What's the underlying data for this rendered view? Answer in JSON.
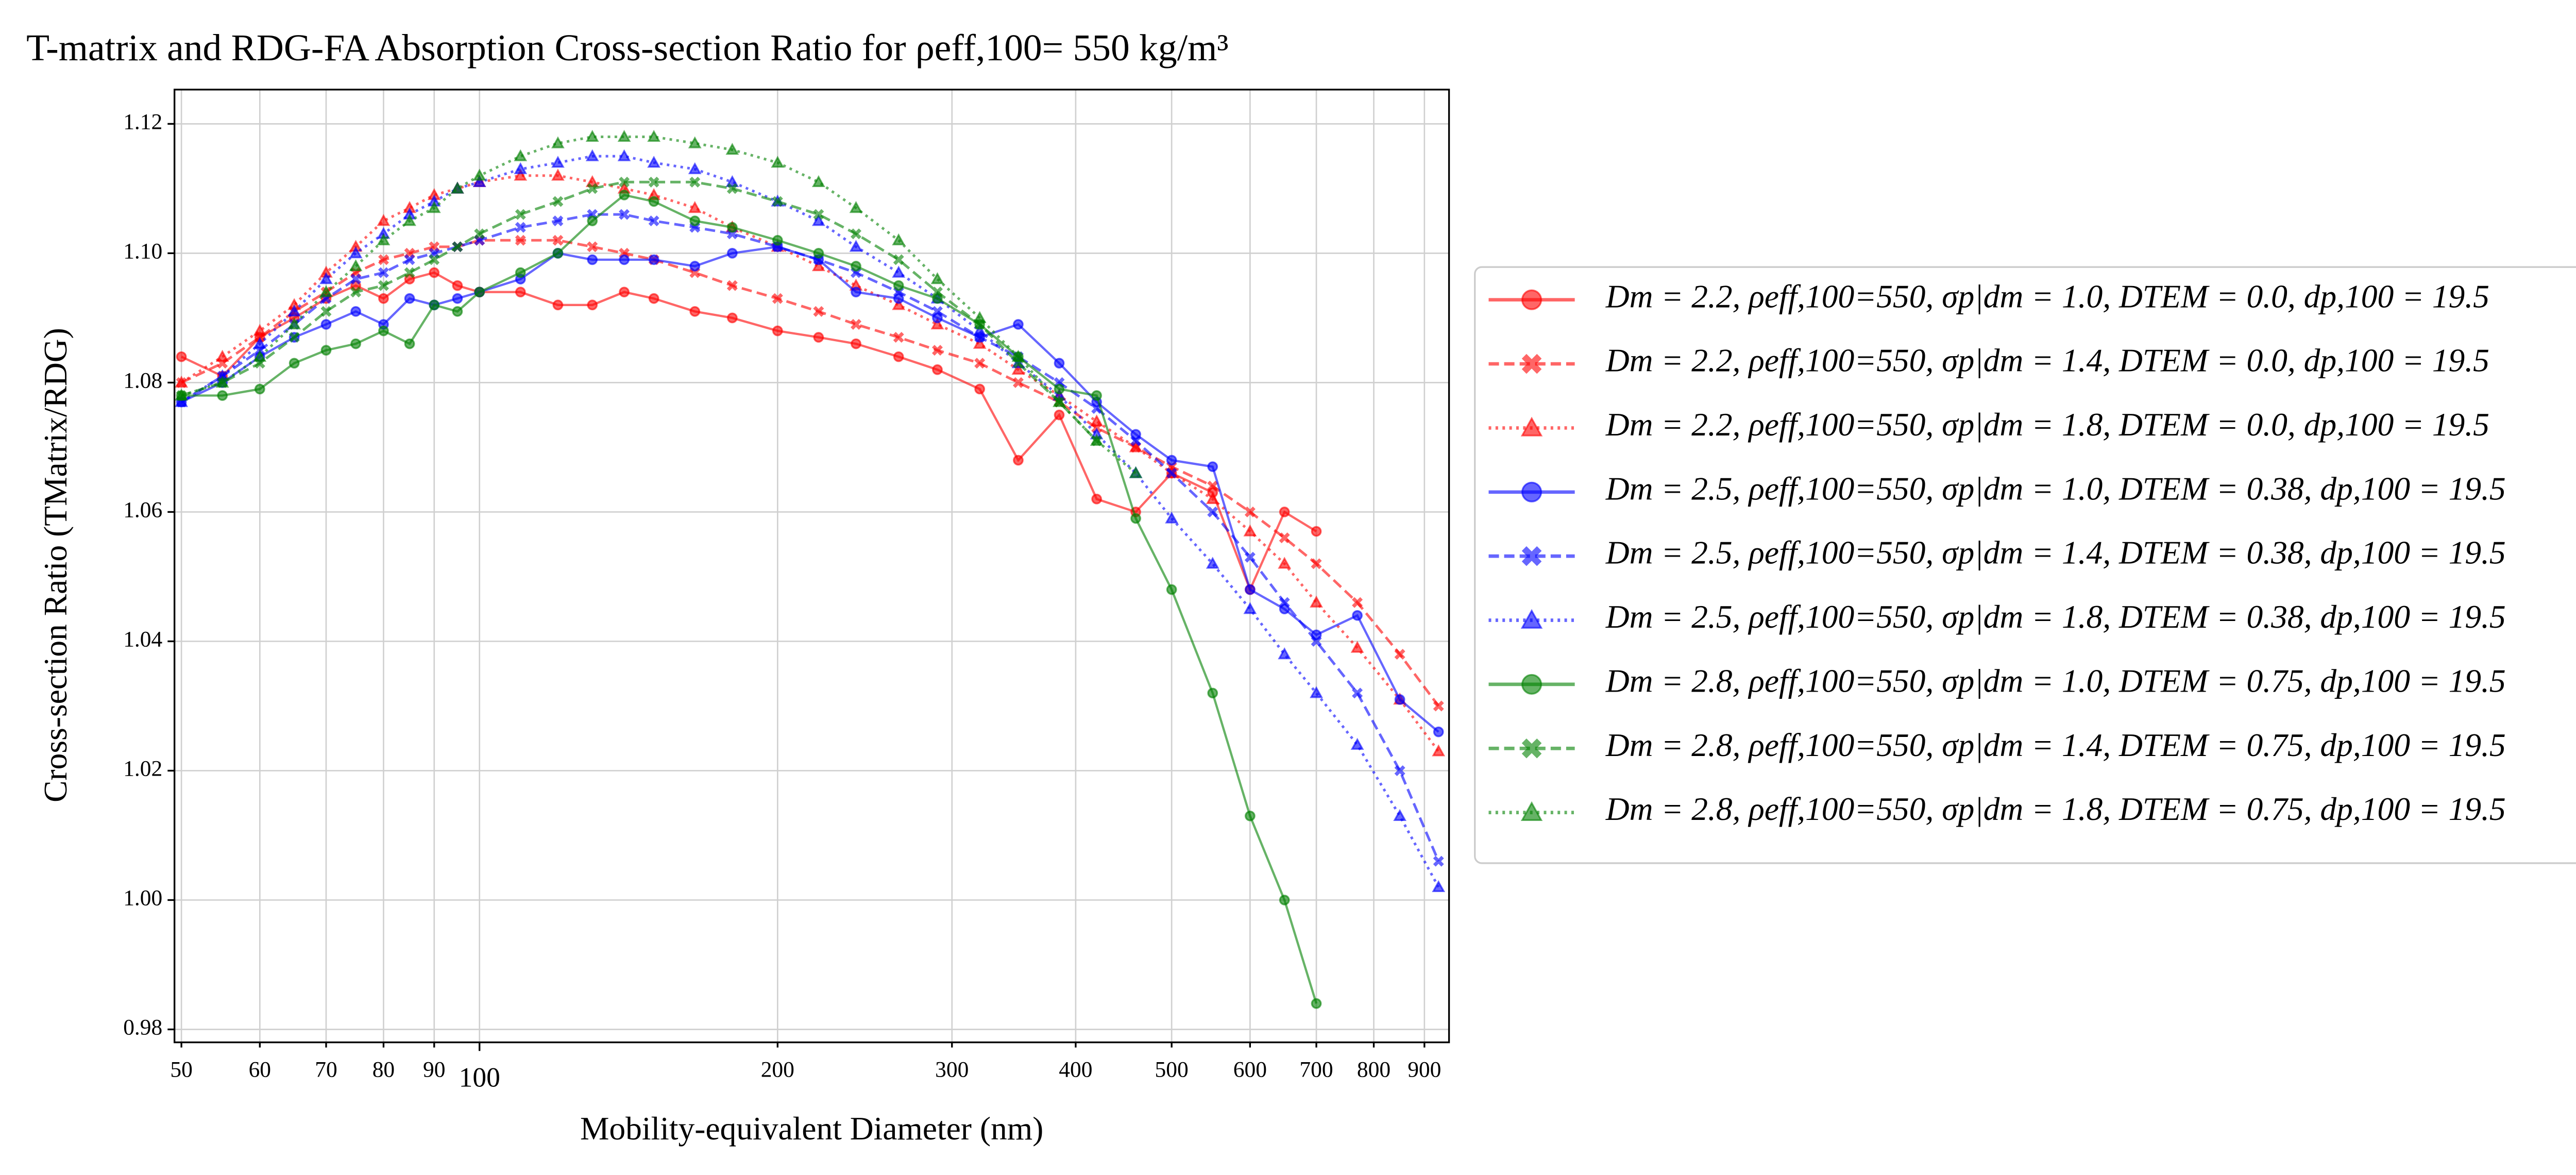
{
  "chart_data": {
    "type": "line",
    "title": "T-matrix and RDG-FA Absorption Cross-section Ratio for ρeff,100= 550 kg/m³",
    "xlabel": "Mobility-equivalent Diameter (nm)",
    "ylabel": "Cross-section Ratio (TMatrix/RDG)",
    "xscale": "log",
    "grid": true,
    "legend": "outside right",
    "alpha": 0.6,
    "xlim": [
      49.2,
      953
    ],
    "ylim": [
      0.978,
      1.1253
    ],
    "xticks": [
      50,
      60,
      70,
      80,
      90,
      100,
      200,
      300,
      400,
      500,
      600,
      700,
      800,
      900
    ],
    "yticks": [
      {
        "value": 0.98,
        "label": "0.98"
      },
      {
        "value": 1.0,
        "label": "1.00"
      },
      {
        "value": 1.02,
        "label": "1.02"
      },
      {
        "value": 1.04,
        "label": "1.04"
      },
      {
        "value": 1.06,
        "label": "1.06"
      },
      {
        "value": 1.08,
        "label": "1.08"
      },
      {
        "value": 1.1,
        "label": "1.10"
      },
      {
        "value": 1.12,
        "label": "1.12"
      }
    ],
    "x": [
      50,
      55,
      60,
      65,
      70,
      75,
      80,
      85,
      90,
      95,
      100,
      110,
      120,
      130,
      140,
      150,
      165,
      180,
      200,
      220,
      240,
      265,
      290,
      320,
      350,
      385,
      420,
      460,
      500,
      550,
      600,
      650,
      700,
      770,
      850,
      930
    ],
    "series": [
      {
        "name": "Dm = 2.2, ρeff,100=550, σp|dm = 1.0, DTEM = 0.0, dp,100 = 19.5",
        "color": "#ff0000",
        "marker": "circle",
        "linestyle": "solid",
        "values": [
          1.084,
          1.081,
          1.087,
          1.09,
          1.093,
          1.095,
          1.093,
          1.096,
          1.097,
          1.095,
          1.094,
          1.094,
          1.092,
          1.092,
          1.094,
          1.093,
          1.091,
          1.09,
          1.088,
          1.087,
          1.086,
          1.084,
          1.082,
          1.079,
          1.068,
          1.075,
          1.062,
          1.06,
          1.066,
          1.063,
          1.048,
          1.06,
          1.057,
          null,
          null,
          null
        ]
      },
      {
        "name": "Dm = 2.2, ρeff,100=550, σp|dm = 1.4, DTEM = 0.0, dp,100 = 19.5",
        "color": "#ff0000",
        "marker": "x",
        "linestyle": "dashed",
        "values": [
          1.08,
          1.083,
          1.087,
          1.091,
          1.094,
          1.097,
          1.099,
          1.1,
          1.101,
          1.101,
          1.102,
          1.102,
          1.102,
          1.101,
          1.1,
          1.099,
          1.097,
          1.095,
          1.093,
          1.091,
          1.089,
          1.087,
          1.085,
          1.083,
          1.08,
          1.077,
          1.073,
          1.07,
          1.067,
          1.064,
          1.06,
          1.056,
          1.052,
          1.046,
          1.038,
          1.03
        ]
      },
      {
        "name": "Dm = 2.2, ρeff,100=550, σp|dm = 1.8, DTEM = 0.0, dp,100 = 19.5",
        "color": "#ff0000",
        "marker": "triangle",
        "linestyle": "dotted",
        "values": [
          1.08,
          1.084,
          1.088,
          1.092,
          1.097,
          1.101,
          1.105,
          1.107,
          1.109,
          1.11,
          1.111,
          1.112,
          1.112,
          1.111,
          1.11,
          1.109,
          1.107,
          1.104,
          1.101,
          1.098,
          1.095,
          1.092,
          1.089,
          1.086,
          1.082,
          1.078,
          1.074,
          1.07,
          1.066,
          1.062,
          1.057,
          1.052,
          1.046,
          1.039,
          1.031,
          1.023
        ]
      },
      {
        "name": "Dm = 2.5, ρeff,100=550, σp|dm = 1.0, DTEM = 0.38, dp,100 = 19.5",
        "color": "#0000ff",
        "marker": "circle",
        "linestyle": "solid",
        "values": [
          1.077,
          1.08,
          1.084,
          1.087,
          1.089,
          1.091,
          1.089,
          1.093,
          1.092,
          1.093,
          1.094,
          1.096,
          1.1,
          1.099,
          1.099,
          1.099,
          1.098,
          1.1,
          1.101,
          1.099,
          1.094,
          1.093,
          1.09,
          1.087,
          1.089,
          1.083,
          1.077,
          1.072,
          1.068,
          1.067,
          1.048,
          1.045,
          1.041,
          1.044,
          1.031,
          1.026
        ]
      },
      {
        "name": "Dm = 2.5, ρeff,100=550, σp|dm = 1.4, DTEM = 0.38, dp,100 = 19.5",
        "color": "#0000ff",
        "marker": "x",
        "linestyle": "dashed",
        "values": [
          1.077,
          1.081,
          1.085,
          1.089,
          1.093,
          1.096,
          1.097,
          1.099,
          1.1,
          1.101,
          1.102,
          1.104,
          1.105,
          1.106,
          1.106,
          1.105,
          1.104,
          1.103,
          1.101,
          1.099,
          1.097,
          1.094,
          1.091,
          1.087,
          1.084,
          1.08,
          1.076,
          1.071,
          1.066,
          1.06,
          1.053,
          1.046,
          1.04,
          1.032,
          1.02,
          1.006
        ]
      },
      {
        "name": "Dm = 2.5, ρeff,100=550, σp|dm = 1.8, DTEM = 0.38, dp,100 = 19.5",
        "color": "#0000ff",
        "marker": "triangle",
        "linestyle": "dotted",
        "values": [
          1.077,
          1.081,
          1.086,
          1.091,
          1.096,
          1.1,
          1.103,
          1.106,
          1.108,
          1.11,
          1.111,
          1.113,
          1.114,
          1.115,
          1.115,
          1.114,
          1.113,
          1.111,
          1.108,
          1.105,
          1.101,
          1.097,
          1.093,
          1.088,
          1.083,
          1.078,
          1.072,
          1.066,
          1.059,
          1.052,
          1.045,
          1.038,
          1.032,
          1.024,
          1.013,
          1.002
        ]
      },
      {
        "name": "Dm = 2.8, ρeff,100=550, σp|dm = 1.0, DTEM = 0.75, dp,100 = 19.5",
        "color": "#008000",
        "marker": "circle",
        "linestyle": "solid",
        "values": [
          1.078,
          1.078,
          1.079,
          1.083,
          1.085,
          1.086,
          1.088,
          1.086,
          1.092,
          1.091,
          1.094,
          1.097,
          1.1,
          1.105,
          1.109,
          1.108,
          1.105,
          1.104,
          1.102,
          1.1,
          1.098,
          1.095,
          1.093,
          1.089,
          1.084,
          1.079,
          1.078,
          1.059,
          1.048,
          1.032,
          1.013,
          1.0,
          0.984,
          null,
          null,
          null
        ]
      },
      {
        "name": "Dm = 2.8, ρeff,100=550, σp|dm = 1.4, DTEM = 0.75, dp,100 = 19.5",
        "color": "#008000",
        "marker": "x",
        "linestyle": "dashed",
        "values": [
          1.078,
          1.08,
          1.083,
          1.087,
          1.091,
          1.094,
          1.095,
          1.097,
          1.099,
          1.101,
          1.103,
          1.106,
          1.108,
          1.11,
          1.111,
          1.111,
          1.111,
          1.11,
          1.108,
          1.106,
          1.103,
          1.099,
          1.094,
          1.089,
          1.083,
          1.077,
          1.071,
          null,
          null,
          null,
          null,
          null,
          null,
          null,
          null,
          null
        ]
      },
      {
        "name": "Dm = 2.8, ρeff,100=550, σp|dm = 1.8, DTEM = 0.75, dp,100 = 19.5",
        "color": "#008000",
        "marker": "triangle",
        "linestyle": "dotted",
        "values": [
          1.078,
          1.08,
          1.084,
          1.089,
          1.094,
          1.098,
          1.102,
          1.105,
          1.107,
          1.11,
          1.112,
          1.115,
          1.117,
          1.118,
          1.118,
          1.118,
          1.117,
          1.116,
          1.114,
          1.111,
          1.107,
          1.102,
          1.096,
          1.09,
          1.084,
          1.077,
          1.071,
          1.066,
          null,
          null,
          null,
          null,
          null,
          null,
          null,
          null
        ]
      }
    ]
  }
}
